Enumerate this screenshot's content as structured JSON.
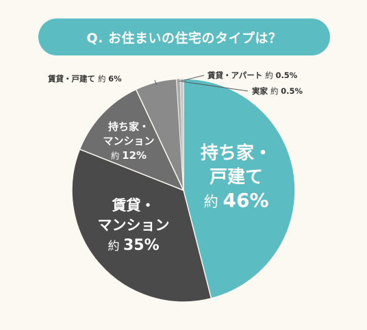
{
  "title": "Q. お住まいの住宅のタイプは？",
  "chart_data": {
    "type": "pie",
    "slices": [
      {
        "id": "owned-house",
        "line1": "持ち家・",
        "line2": "戸建て",
        "prefix": "約",
        "value_label": "46%",
        "value": 46,
        "color": "#5bbcc1"
      },
      {
        "id": "rented-mansion",
        "line1": "賃貸・",
        "line2": "マンション",
        "prefix": "約",
        "value_label": "35%",
        "value": 35,
        "color": "#4a4a4a"
      },
      {
        "id": "owned-mansion",
        "line1": "持ち家・",
        "line2": "マンション",
        "prefix": "約",
        "value_label": "12%",
        "value": 12,
        "color": "#6e6e6e"
      },
      {
        "id": "rented-house",
        "label": "賃貸・戸建て",
        "prefix": "約",
        "value_label": "6%",
        "value": 6,
        "color": "#8a8a8a"
      },
      {
        "id": "rented-apartment",
        "label": "賃貸・アパート",
        "prefix": "約",
        "value_label": "0.5%",
        "value": 0.5,
        "color": "#a8a8a8"
      },
      {
        "id": "parents-home",
        "label": "実家",
        "prefix": "約",
        "value_label": "0.5%",
        "value": 0.5,
        "color": "#c8c8c8"
      }
    ]
  }
}
